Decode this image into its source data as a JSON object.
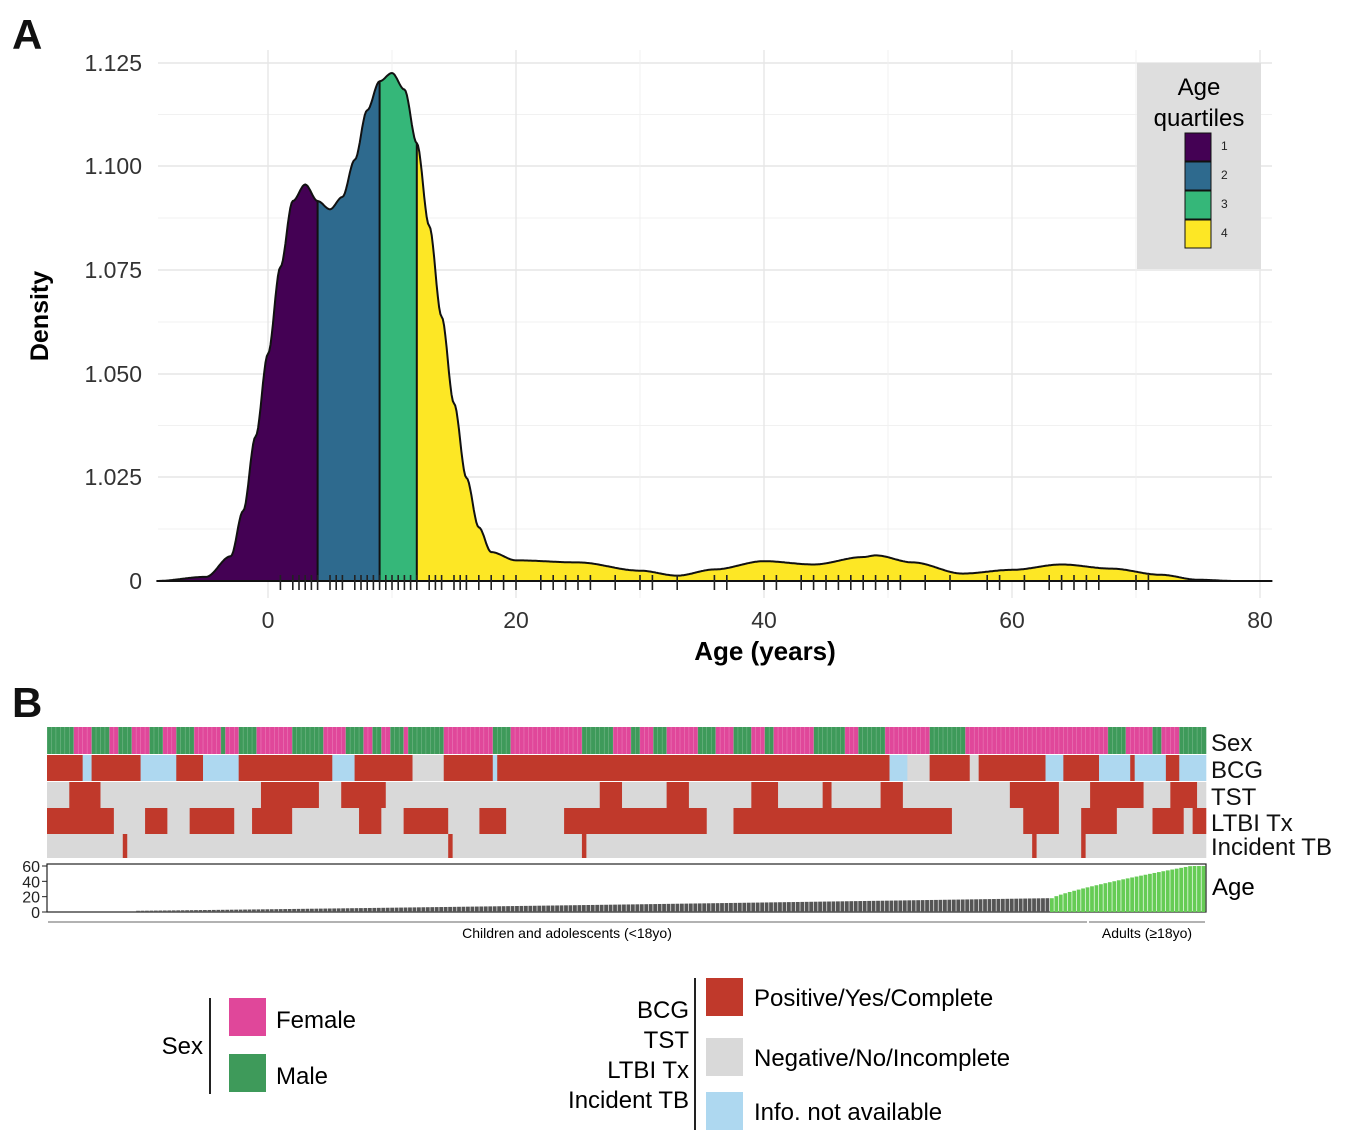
{
  "panel_a_label": "A",
  "panel_b_label": "B",
  "chart_data": [
    {
      "type": "area",
      "xlabel": "Age (years)",
      "ylabel": "Density",
      "xlim": [
        -9,
        81
      ],
      "x_ticks": [
        "0",
        "20",
        "40",
        "60",
        "80"
      ],
      "y_tick_labels": [
        "0",
        "1.025",
        "1.050",
        "1.075",
        "1.100",
        "1.125"
      ],
      "grid": true,
      "legend": {
        "title_lines": [
          "Age",
          "quartiles"
        ],
        "position": "top-right",
        "items": [
          {
            "label": "1",
            "color": "#440154"
          },
          {
            "label": "2",
            "color": "#2e6a8e"
          },
          {
            "label": "3",
            "color": "#35b779"
          },
          {
            "label": "4",
            "color": "#fde725"
          }
        ]
      },
      "quartile_breaks": [
        4,
        9,
        12
      ],
      "curve": {
        "x": [
          -9,
          -5,
          -3,
          -2,
          -1,
          0,
          1,
          2,
          3,
          4,
          5,
          6,
          7,
          8,
          9,
          10,
          11,
          12,
          13,
          14,
          15,
          16,
          17,
          18,
          20,
          25,
          30,
          33,
          36,
          40,
          44,
          48,
          49,
          52,
          56,
          60,
          64,
          68,
          72,
          75,
          78,
          81
        ],
        "y": [
          0,
          0.1,
          0.6,
          1.7,
          3.5,
          5.5,
          7.6,
          9.2,
          9.6,
          9.2,
          9.0,
          9.3,
          10.2,
          11.4,
          12.1,
          12.3,
          11.9,
          10.6,
          8.6,
          6.4,
          4.3,
          2.5,
          1.3,
          0.7,
          0.5,
          0.45,
          0.25,
          0.13,
          0.28,
          0.48,
          0.4,
          0.58,
          0.62,
          0.45,
          0.18,
          0.27,
          0.4,
          0.3,
          0.15,
          0.03,
          0,
          0
        ]
      },
      "rug_ages": [
        1,
        2,
        2.5,
        3,
        3.5,
        4,
        5,
        5.5,
        6,
        7,
        7.5,
        8,
        8.5,
        9,
        9.5,
        10,
        10.5,
        11,
        11.5,
        12,
        13,
        13.5,
        14,
        15,
        15.5,
        16,
        17,
        18,
        19,
        20,
        22,
        23,
        24,
        25,
        26,
        28,
        30,
        31,
        33,
        36,
        37,
        40,
        41,
        43,
        44,
        45,
        46,
        47,
        48,
        49,
        50,
        51,
        53,
        55,
        58,
        59,
        61,
        63,
        64,
        65,
        66,
        67,
        70,
        71
      ]
    },
    {
      "type": "heatmap",
      "rows": [
        "Sex",
        "BCG",
        "TST",
        "LTBI Tx",
        "Incident TB"
      ],
      "age_row_label": "Age",
      "age_ticks": [
        "60",
        "40",
        "20",
        "0"
      ],
      "group_labels": [
        "Children and adolescents (<18yo)",
        "Adults (≥18yo)"
      ],
      "n_individuals": 260,
      "n_children": 225,
      "category_colors": {
        "Female": "#e0479a",
        "Male": "#3e9a5a",
        "Positive/Yes/Complete": "#c0392b",
        "Negative/No/Incomplete": "#d9d9d9",
        "Info. not available": "#aed8f0"
      },
      "age_bar_colors": {
        "children": "#555555",
        "adults": "#66cc55"
      }
    }
  ],
  "legend_bottom": {
    "sex": {
      "title": "Sex",
      "items": [
        {
          "label": "Female",
          "color": "#e0479a"
        },
        {
          "label": "Male",
          "color": "#3e9a5a"
        }
      ]
    },
    "status": {
      "titles": [
        "BCG",
        "TST",
        "LTBI Tx",
        "Incident TB"
      ],
      "items": [
        {
          "label": "Positive/Yes/Complete",
          "color": "#c0392b"
        },
        {
          "label": "Negative/No/Incomplete",
          "color": "#d9d9d9"
        },
        {
          "label": "Info. not available",
          "color": "#aed8f0"
        }
      ]
    }
  }
}
